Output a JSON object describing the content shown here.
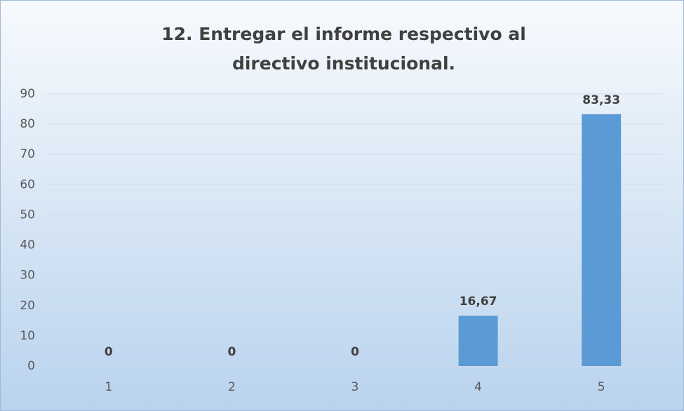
{
  "chart_data": {
    "type": "bar",
    "title": "12. Entregar el informe respectivo al directivo institucional.",
    "categories": [
      "1",
      "2",
      "3",
      "4",
      "5"
    ],
    "values": [
      0,
      0,
      0,
      16.67,
      83.33
    ],
    "value_labels": [
      "0",
      "0",
      "0",
      "16,67",
      "83,33"
    ],
    "color": "#5b9bd5",
    "ylim": [
      0,
      90
    ],
    "yticks": [
      0,
      10,
      20,
      30,
      40,
      50,
      60,
      70,
      80,
      90
    ],
    "grid": true
  }
}
